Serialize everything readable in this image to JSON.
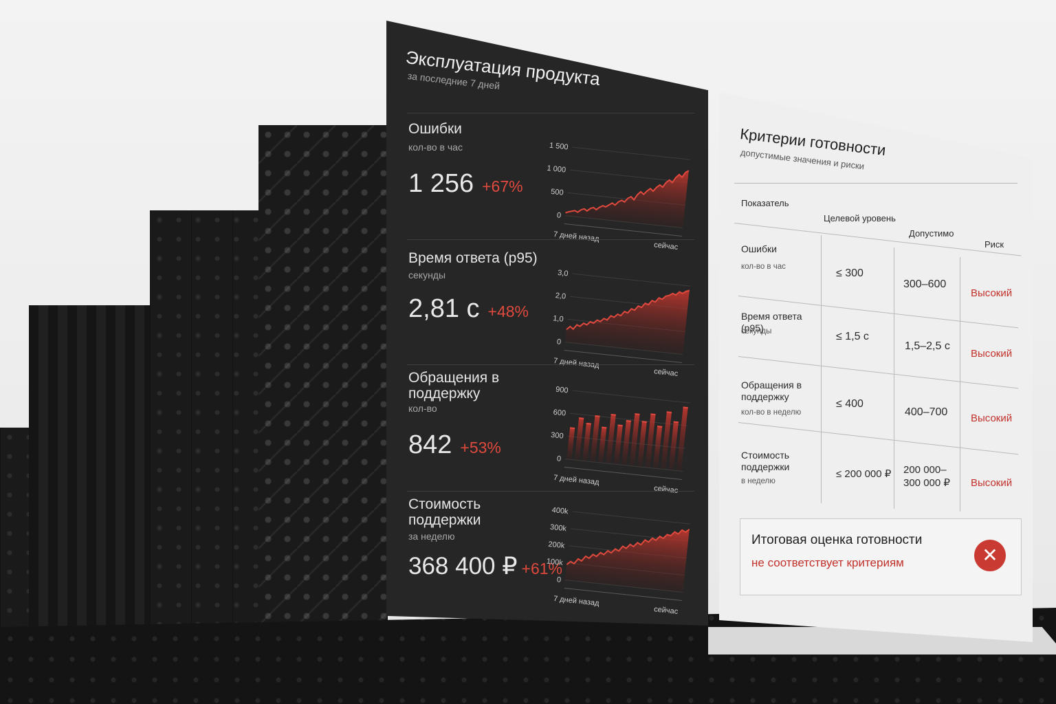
{
  "dashboard": {
    "title": "Эксплуатация продукта",
    "subtitle": "за последние 7 дней",
    "metrics": [
      {
        "name": "Ошибки",
        "unit": "кол-во в час",
        "value": "1 256",
        "delta": "+67%"
      },
      {
        "name": "Время ответа (p95)",
        "unit": "секунды",
        "value": "2,81 с",
        "delta": "+48%"
      },
      {
        "name": "Обращения в поддержку",
        "unit": "кол-во",
        "value": "842",
        "delta": "+53%"
      },
      {
        "name": "Стоимость поддержки",
        "unit": "за неделю",
        "value": "368 400 ₽",
        "delta": "+61%"
      }
    ]
  },
  "chart_data": [
    {
      "type": "area",
      "x_start_label": "7 дней назад",
      "x_end_label": "сейчас",
      "yticks": [
        "0",
        "500",
        "1 000",
        "1 500"
      ],
      "ylim": [
        0,
        1500
      ],
      "values": [
        60,
        90,
        110,
        130,
        100,
        160,
        190,
        150,
        210,
        240,
        200,
        260,
        300,
        280,
        330,
        380,
        340,
        420,
        460,
        430,
        520,
        560,
        500,
        620,
        690,
        640,
        720,
        780,
        730,
        820,
        880,
        840,
        950,
        1010,
        960,
        1080,
        1150,
        1100,
        1210,
        1256
      ]
    },
    {
      "type": "area",
      "x_start_label": "7 дней назад",
      "x_end_label": "сейчас",
      "yticks": [
        "0",
        "1,0",
        "2,0",
        "3,0"
      ],
      "ylim": [
        0,
        3
      ],
      "values": [
        0.55,
        0.7,
        0.6,
        0.8,
        0.75,
        0.9,
        0.85,
        1.0,
        0.95,
        1.1,
        1.05,
        1.2,
        1.15,
        1.35,
        1.3,
        1.45,
        1.4,
        1.6,
        1.55,
        1.75,
        1.7,
        1.9,
        1.85,
        2.05,
        2.0,
        2.2,
        2.15,
        2.35,
        2.3,
        2.45,
        2.5,
        2.6,
        2.55,
        2.7,
        2.65,
        2.75,
        2.81
      ]
    },
    {
      "type": "bar",
      "x_start_label": "7 дней назад",
      "x_end_label": "сейчас",
      "yticks": [
        "0",
        "300",
        "600",
        "900"
      ],
      "ylim": [
        0,
        900
      ],
      "values": [
        420,
        560,
        500,
        610,
        470,
        650,
        520,
        590,
        690,
        600,
        710,
        560,
        760,
        640,
        842
      ]
    },
    {
      "type": "area",
      "x_start_label": "7 дней назад",
      "x_end_label": "сейчас",
      "yticks": [
        "0",
        "100k",
        "200k",
        "300k",
        "400k"
      ],
      "ylim": [
        0,
        400000
      ],
      "values": [
        90000,
        110000,
        100000,
        130000,
        120000,
        150000,
        140000,
        165000,
        155000,
        180000,
        170000,
        195000,
        185000,
        210000,
        200000,
        230000,
        220000,
        245000,
        235000,
        260000,
        250000,
        280000,
        270000,
        295000,
        285000,
        310000,
        300000,
        325000,
        320000,
        345000,
        335000,
        360000,
        350000,
        368400
      ]
    }
  ],
  "criteria": {
    "title": "Критерии готовности",
    "subtitle": "допустимые значения и риски",
    "headers": [
      "Показатель",
      "Целевой уровень",
      "Допустимо",
      "Риск"
    ],
    "rows": [
      {
        "name": "Ошибки",
        "unit": "кол-во в час",
        "target": "≤ 300",
        "allowed": "300–600",
        "risk": "Высокий"
      },
      {
        "name": "Время ответа (p95)",
        "unit": "секунды",
        "target": "≤ 1,5 с",
        "allowed": "1,5–2,5 с",
        "risk": "Высокий"
      },
      {
        "name": "Обращения в поддержку",
        "unit": "кол-во в неделю",
        "target": "≤ 400",
        "allowed": "400–700",
        "risk": "Высокий"
      },
      {
        "name": "Стоимость поддержки",
        "unit": "в неделю",
        "target": "≤ 200 000 ₽",
        "allowed": "200 000– 300 000 ₽",
        "risk": "Высокий"
      }
    ],
    "verdict": {
      "title": "Итоговая оценка готовности",
      "status": "не соответствует критериям",
      "icon": "x-icon"
    }
  },
  "colors": {
    "accent": "#e0493e",
    "risk": "#c1302a",
    "panel_dark": "#262626",
    "panel_light": "#efefef"
  }
}
